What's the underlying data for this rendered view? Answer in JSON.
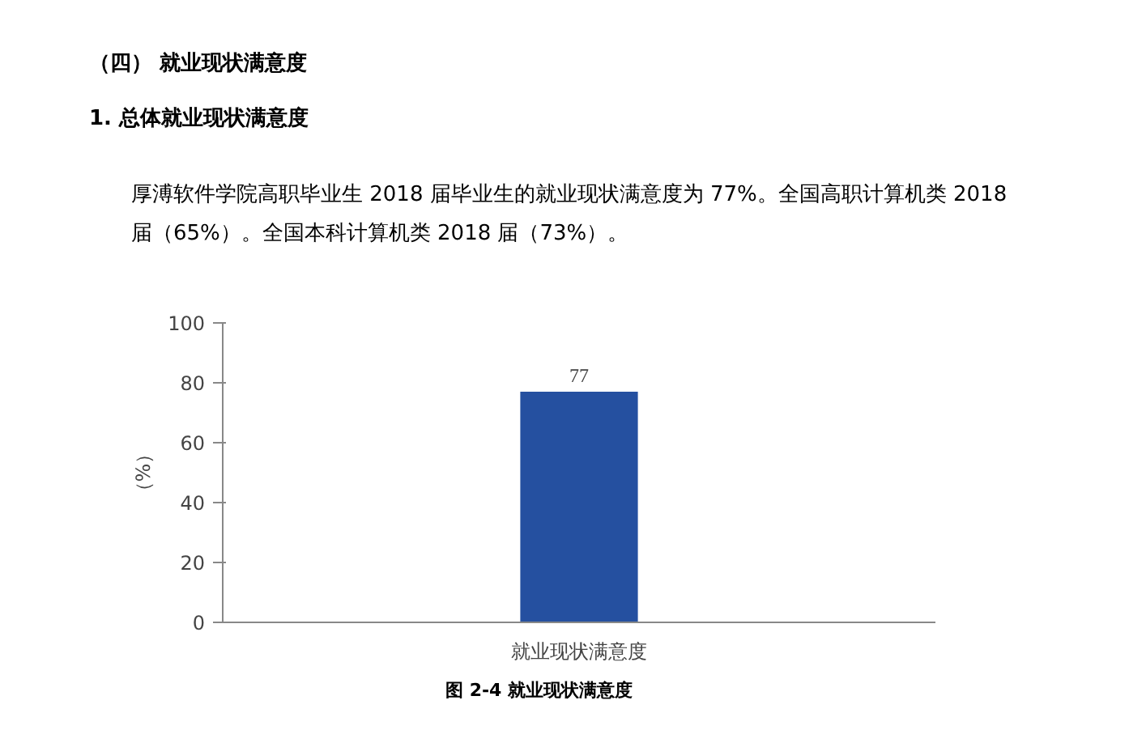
{
  "chart_data": {
    "type": "bar",
    "title": "（四） 就业现状满意度",
    "subtitle": "1.  总体就业现状满意度",
    "annotations": [
      "厚溥软件学院高职毕业生 2018 届毕业生的就业现状满意度为 77%。全国高职计算机类 2018 届（65%）。全国本科计算机类 2018 届（73%）。",
      "图 2-4   就业现状满意度"
    ],
    "ylabel": "（%）",
    "categories": [
      "就业现状满意度"
    ],
    "values": [
      77
    ],
    "color": "#2550a0",
    "ylim": [
      0,
      100
    ],
    "yticks": [
      0,
      20,
      40,
      60,
      80,
      100
    ],
    "data_labels": true,
    "grid": false
  }
}
